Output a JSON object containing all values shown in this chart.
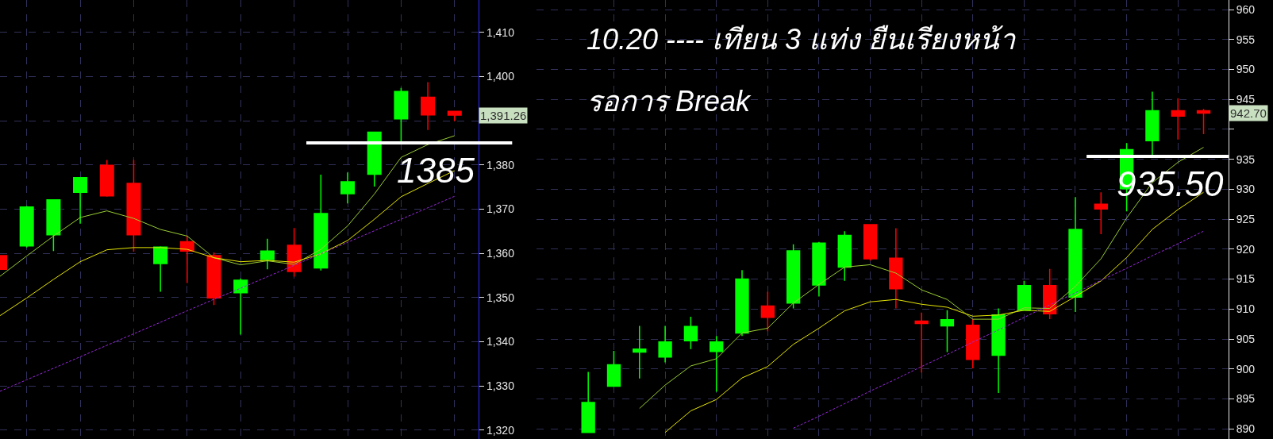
{
  "chart_data": [
    {
      "type": "candlestick",
      "categories": [
        null,
        null,
        null,
        null,
        null,
        null,
        null,
        null,
        null,
        null,
        null,
        null,
        null,
        null,
        null,
        null,
        null,
        null
      ],
      "ohlc": [
        [
          1359.5,
          1359.6,
          1356.3,
          1356.4
        ],
        [
          1361.7,
          1370.7,
          1361.3,
          1370.5
        ],
        [
          1364.2,
          1372.1,
          1360.5,
          1372.1
        ],
        [
          1373.8,
          1377.2,
          1366.7,
          1377.1
        ],
        [
          1379.9,
          1381.1,
          1372.8,
          1373.0
        ],
        [
          1375.8,
          1381.1,
          1360.4,
          1364.2
        ],
        [
          1357.7,
          1361.6,
          1351.3,
          1361.4
        ],
        [
          1362.6,
          1364.0,
          1353.3,
          1360.5
        ],
        [
          1359.5,
          1360.2,
          1348.3,
          1349.9
        ],
        [
          1351.1,
          1354.3,
          1341.6,
          1353.9
        ],
        [
          1358.6,
          1363.3,
          1356.4,
          1360.5
        ],
        [
          1361.8,
          1365.7,
          1354.7,
          1355.9
        ],
        [
          1356.7,
          1377.8,
          1356.1,
          1369.0
        ],
        [
          1373.5,
          1378.3,
          1371.3,
          1376.2
        ],
        [
          1377.9,
          1387.5,
          1375.1,
          1387.4
        ],
        [
          1390.4,
          1397.4,
          1385.3,
          1396.6
        ],
        [
          1395.3,
          1398.7,
          1387.9,
          1391.3
        ],
        [
          1392.1,
          1392.1,
          1389.9,
          1391.26
        ]
      ],
      "colors": [
        "#ff0000",
        "#00ff00",
        "#00ff00",
        "#00ff00",
        "#ff0000",
        "#ff0000",
        "#00ff00",
        "#ff0000",
        "#ff0000",
        "#00ff00",
        "#00ff00",
        "#ff0000",
        "#00ff00",
        "#00ff00",
        "#00ff00",
        "#00ff00",
        "#ff0000",
        "#ff0000"
      ],
      "series": [
        {
          "type": "line",
          "color": "#9acd32",
          "values": [
            1354.8,
            1359.4,
            1363.9,
            1368.1,
            1369.6,
            1367.9,
            1365.4,
            1363.9,
            1359.0,
            1357.4,
            1358.3,
            1357.5,
            1360.9,
            1366.2,
            1373.4,
            1381.7,
            1384.6,
            1386.6
          ]
        },
        {
          "type": "line",
          "color": "#e6e600",
          "values": [
            1345.9,
            1349.9,
            1354.1,
            1358.1,
            1360.8,
            1361.3,
            1361.3,
            1360.9,
            1359.0,
            1358.1,
            1358.4,
            1358.0,
            1359.9,
            1362.9,
            1367.7,
            1372.8,
            1375.8,
            1378.7
          ]
        },
        {
          "type": "line",
          "color": "#9a28e0",
          "line_style": "dashed",
          "values": [
            1328.8,
            1331.4,
            1334.0,
            1336.6,
            1339.2,
            1341.8,
            1344.4,
            1347.0,
            1349.6,
            1352.1,
            1354.7,
            1357.3,
            1359.9,
            1362.5,
            1365.1,
            1367.7,
            1370.3,
            1372.9
          ]
        }
      ],
      "ylim": [
        1318.0,
        1417.3
      ],
      "yticks": [
        {
          "value": 1320,
          "label": "1,320"
        },
        {
          "value": 1330,
          "label": "1,330"
        },
        {
          "value": 1340,
          "label": "1,340"
        },
        {
          "value": 1350,
          "label": "1,350"
        },
        {
          "value": 1360,
          "label": "1,360"
        },
        {
          "value": 1370,
          "label": "1,370"
        },
        {
          "value": 1380,
          "label": "1,380"
        },
        {
          "value": 1390,
          "label": null
        },
        {
          "value": 1400,
          "label": "1,400"
        },
        {
          "value": 1410,
          "label": "1,410"
        }
      ],
      "ref_lines": [
        {
          "axis": "y",
          "value": 1385,
          "label": "1385",
          "color": "#ffffff"
        }
      ],
      "annotations": [
        "1,391.26"
      ],
      "grid": true,
      "tick_labels": "y"
    },
    {
      "type": "candlestick",
      "categories": [
        null,
        null,
        null,
        null,
        null,
        null,
        null,
        null,
        null,
        null,
        null,
        null,
        null,
        null,
        null,
        null,
        null,
        null,
        null,
        null,
        null,
        null,
        null,
        null,
        null
      ],
      "ohlc": [
        [
          889.4,
          899.5,
          889.4,
          894.4
        ],
        [
          897.1,
          903.0,
          897.0,
          900.7
        ],
        [
          902.8,
          907.2,
          898.4,
          903.3
        ],
        [
          902.0,
          907.2,
          901.1,
          904.5
        ],
        [
          904.7,
          908.7,
          903.3,
          907.1
        ],
        [
          902.9,
          905.5,
          896.2,
          904.5
        ],
        [
          906.0,
          916.5,
          905.5,
          915.0
        ],
        [
          910.5,
          912.9,
          906.3,
          908.6
        ],
        [
          911.0,
          920.8,
          910.1,
          919.7
        ],
        [
          914.0,
          921.2,
          912.1,
          921.0
        ],
        [
          917.0,
          923.0,
          914.7,
          922.3
        ],
        [
          924.1,
          924.1,
          918.1,
          918.4
        ],
        [
          918.5,
          923.5,
          910.1,
          913.4
        ],
        [
          908.0,
          909.4,
          899.4,
          907.6
        ],
        [
          907.2,
          909.8,
          902.8,
          908.2
        ],
        [
          907.3,
          908.3,
          900.1,
          901.6
        ],
        [
          902.3,
          910.1,
          896.0,
          909.0
        ],
        [
          909.8,
          914.7,
          909.8,
          913.9
        ],
        [
          913.9,
          916.7,
          908.3,
          909.2
        ],
        [
          912.0,
          928.7,
          909.5,
          923.3
        ],
        [
          927.5,
          929.5,
          922.5,
          926.7
        ],
        [
          930.1,
          937.7,
          926.3,
          936.6
        ],
        [
          938.1,
          946.3,
          935.6,
          943.1
        ],
        [
          943.1,
          945.2,
          938.3,
          942.2
        ],
        [
          943.1,
          943.4,
          939.2,
          942.7
        ]
      ],
      "colors": [
        "#00ff00",
        "#00ff00",
        "#00ff00",
        "#00ff00",
        "#00ff00",
        "#00ff00",
        "#00ff00",
        "#ff0000",
        "#00ff00",
        "#00ff00",
        "#00ff00",
        "#ff0000",
        "#ff0000",
        "#ff0000",
        "#00ff00",
        "#ff0000",
        "#00ff00",
        "#00ff00",
        "#ff0000",
        "#00ff00",
        "#ff0000",
        "#00ff00",
        "#00ff00",
        "#ff0000",
        "#ff0000"
      ],
      "series": [
        {
          "type": "line",
          "color": "#9acd32",
          "values": [
            null,
            null,
            893.4,
            897.3,
            900.5,
            901.7,
            906.0,
            906.8,
            911.0,
            914.1,
            917.0,
            917.4,
            916.0,
            913.2,
            911.6,
            908.3,
            908.3,
            910.2,
            910.1,
            913.8,
            918.4,
            925.2,
            931.1,
            934.5,
            937.0
          ]
        },
        {
          "type": "line",
          "color": "#e6e600",
          "values": [
            null,
            null,
            null,
            889.4,
            893.0,
            894.9,
            898.5,
            900.4,
            904.1,
            906.8,
            909.7,
            911.2,
            911.6,
            910.8,
            910.3,
            908.8,
            909.0,
            909.8,
            909.6,
            912.1,
            914.7,
            918.6,
            923.3,
            926.6,
            929.5
          ]
        },
        {
          "type": "line",
          "color": "#9a28e0",
          "line_style": "dashed",
          "values": [
            null,
            null,
            null,
            null,
            null,
            null,
            null,
            null,
            890.1,
            892.1,
            894.2,
            896.3,
            898.3,
            900.4,
            902.4,
            904.5,
            906.5,
            908.6,
            910.7,
            912.7,
            914.8,
            916.8,
            918.9,
            920.9,
            923.0
          ]
        }
      ],
      "ylim": [
        888.3,
        961.6
      ],
      "yticks": [
        890,
        895,
        900,
        905,
        910,
        915,
        920,
        925,
        930,
        935,
        {
          "value": 940,
          "label": null
        },
        945,
        950,
        955,
        960
      ],
      "ref_lines": [
        {
          "axis": "y",
          "value": 935.5,
          "label": "935.50",
          "color": "#ffffff"
        }
      ],
      "annotations": [
        "10.20 ---- เทียน 3 แท่ง ยืนเรียงหน้า",
        "รอการ Break",
        "942.70"
      ],
      "grid": true,
      "tick_labels": "y"
    }
  ]
}
